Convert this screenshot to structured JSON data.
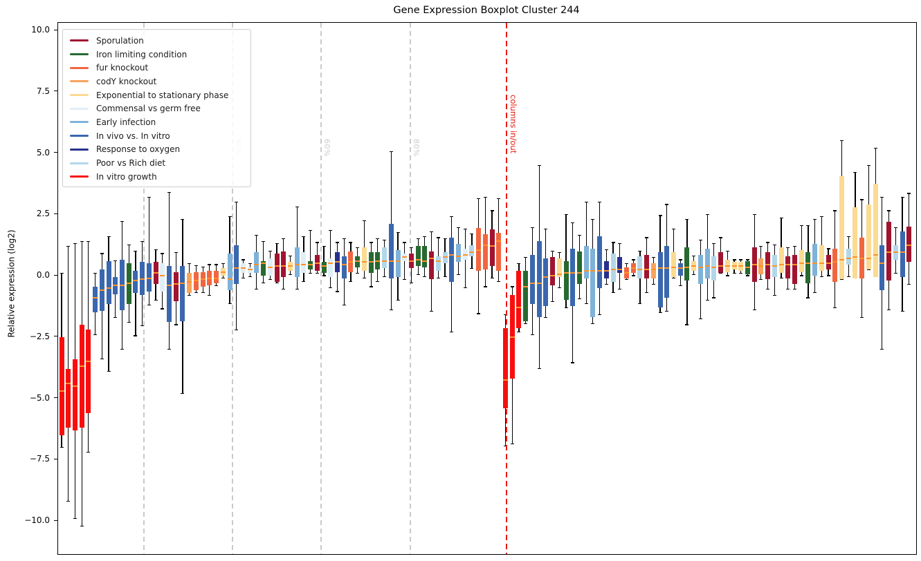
{
  "title": "Gene Expression Boxplot Cluster 244",
  "y_axis": {
    "label": "Relative expression (log2)",
    "ticks": [
      {
        "value": 10.0,
        "label": "10.0"
      },
      {
        "value": 7.5,
        "label": "7.5"
      },
      {
        "value": 5.0,
        "label": "5.0"
      },
      {
        "value": 2.5,
        "label": "2.5"
      },
      {
        "value": 0.0,
        "label": "0.0"
      },
      {
        "value": -2.5,
        "label": "−2.5"
      },
      {
        "value": -5.0,
        "label": "−5.0"
      },
      {
        "value": -7.5,
        "label": "−7.5"
      },
      {
        "value": -10.0,
        "label": "−10.0"
      }
    ],
    "range": [
      -11.4,
      10.3
    ]
  },
  "legend": {
    "entries": [
      {
        "label": "Sporulation",
        "color": "#a0142f"
      },
      {
        "label": "Iron limiting condition",
        "color": "#27692f"
      },
      {
        "label": "fur knockout",
        "color": "#f1663f"
      },
      {
        "label": "codY knockout",
        "color": "#f8a35b"
      },
      {
        "label": "Exponential to stationary phase",
        "color": "#fbda92"
      },
      {
        "label": "Commensal vs germ free",
        "color": "#e0eef7"
      },
      {
        "label": "Early infection",
        "color": "#7fb2d8"
      },
      {
        "label": "In vivo vs. In vitro",
        "color": "#3a67ae"
      },
      {
        "label": "Response to oxygen",
        "color": "#28308c"
      },
      {
        "label": "Poor vs Rich diet",
        "color": "#b3d7ea"
      },
      {
        "label": "In vitro growth",
        "color": "#fb0d0d"
      }
    ]
  },
  "annotations": {
    "percent_lines": [
      {
        "label": "20%",
        "x": 123
      },
      {
        "label": "40%",
        "x": 251
      },
      {
        "label": "60%",
        "x": 379
      },
      {
        "label": "80%",
        "x": 508
      }
    ],
    "red_line": {
      "label": "columns in/out",
      "x": 647
    },
    "grid_color": "#c9c9c9",
    "red_color": "#e8190f"
  },
  "chart_data": {
    "type": "boxplot",
    "title": "Gene Expression Boxplot Cluster 244",
    "ylabel": "Relative expression (log2)",
    "ylim": [
      -11.4,
      10.3
    ],
    "median_color": "#ff9028",
    "whisker_color": "#000000",
    "box_value_format": [
      "condition_index",
      "whisker_low",
      "q1",
      "median",
      "q3",
      "whisker_high"
    ],
    "conditions": [
      "Sporulation",
      "Iron limiting condition",
      "fur knockout",
      "codY knockout",
      "Exponential to stationary phase",
      "Commensal vs germ free",
      "Early infection",
      "In vivo vs. In vitro",
      "Response to oxygen",
      "Poor vs Rich diet",
      "In vitro growth"
    ],
    "boxes": [
      [
        10,
        -7.0,
        -6.5,
        -4.7,
        -2.5,
        0.1
      ],
      [
        10,
        -9.2,
        -6.2,
        -4.4,
        -3.8,
        1.2
      ],
      [
        10,
        -9.9,
        -6.3,
        -4.5,
        -3.4,
        1.3
      ],
      [
        10,
        -10.2,
        -6.2,
        -3.7,
        -2.0,
        1.4
      ],
      [
        10,
        -7.2,
        -5.6,
        -3.5,
        -2.2,
        1.4
      ],
      [
        7,
        -2.4,
        -1.5,
        -0.9,
        -0.45,
        0.1
      ],
      [
        7,
        -3.4,
        -1.45,
        -0.6,
        0.25,
        0.9
      ],
      [
        7,
        -3.9,
        -1.15,
        -0.5,
        0.6,
        1.6
      ],
      [
        7,
        -1.7,
        -0.75,
        -0.4,
        -0.05,
        0.6
      ],
      [
        7,
        -3.0,
        -1.4,
        -0.4,
        0.65,
        2.2
      ],
      [
        1,
        -1.9,
        -1.15,
        -0.3,
        0.5,
        1.25
      ],
      [
        7,
        -2.45,
        -0.7,
        -0.2,
        0.2,
        1.0
      ],
      [
        7,
        -2.05,
        -0.8,
        -0.15,
        0.55,
        1.4
      ],
      [
        7,
        -1.2,
        -0.65,
        -0.1,
        0.5,
        3.2
      ],
      [
        0,
        -1.0,
        -0.35,
        0.1,
        0.55,
        1.05
      ],
      [
        5,
        -1.35,
        -0.65,
        0.0,
        0.5,
        0.9
      ],
      [
        7,
        -3.0,
        -1.9,
        -0.4,
        0.4,
        3.4
      ],
      [
        0,
        -2.0,
        -1.05,
        -0.35,
        0.15,
        0.95
      ],
      [
        7,
        -4.8,
        -1.85,
        -0.3,
        0.4,
        2.3
      ],
      [
        3,
        -0.8,
        -0.7,
        -0.25,
        0.1,
        0.5
      ],
      [
        2,
        -0.7,
        -0.6,
        -0.2,
        0.15,
        0.4
      ],
      [
        2,
        -0.7,
        -0.45,
        -0.15,
        0.15,
        0.35
      ],
      [
        2,
        -0.8,
        -0.4,
        -0.1,
        0.2,
        0.45
      ],
      [
        2,
        -0.4,
        -0.3,
        -0.1,
        0.2,
        0.45
      ],
      [
        4,
        -0.1,
        0.0,
        0.15,
        0.3,
        0.5
      ],
      [
        6,
        -1.15,
        -0.6,
        -0.15,
        0.9,
        2.4
      ],
      [
        7,
        -2.2,
        -0.35,
        0.3,
        1.25,
        3.0
      ],
      [
        5,
        -0.1,
        0.1,
        0.3,
        0.5,
        0.65
      ],
      [
        5,
        -0.05,
        0.1,
        0.25,
        0.35,
        0.5
      ],
      [
        6,
        -0.55,
        0.1,
        0.45,
        0.95,
        1.65
      ],
      [
        1,
        -0.3,
        0.0,
        0.5,
        0.6,
        1.4
      ],
      [
        5,
        -0.15,
        0.0,
        0.35,
        0.7,
        1.0
      ],
      [
        0,
        -0.3,
        -0.25,
        0.4,
        0.9,
        1.3
      ],
      [
        0,
        -0.55,
        -0.05,
        0.4,
        1.0,
        1.5
      ],
      [
        4,
        0.05,
        0.2,
        0.4,
        0.55,
        0.8
      ],
      [
        6,
        -0.55,
        -0.05,
        0.45,
        1.15,
        2.8
      ],
      [
        5,
        -0.25,
        0.1,
        0.45,
        0.95,
        1.6
      ],
      [
        1,
        0.1,
        0.25,
        0.45,
        0.6,
        1.85
      ],
      [
        0,
        0.1,
        0.2,
        0.5,
        0.85,
        1.35
      ],
      [
        1,
        0.0,
        0.1,
        0.4,
        0.55,
        1.2
      ],
      [
        5,
        -0.5,
        -0.05,
        0.5,
        0.7,
        1.85
      ],
      [
        8,
        -0.65,
        0.15,
        0.55,
        0.95,
        1.35
      ],
      [
        7,
        -1.2,
        -0.1,
        0.45,
        0.8,
        1.5
      ],
      [
        2,
        -0.25,
        0.15,
        0.55,
        1.0,
        1.35
      ],
      [
        1,
        0.1,
        0.35,
        0.6,
        0.8,
        1.15
      ],
      [
        4,
        -0.1,
        0.2,
        0.55,
        1.15,
        2.25
      ],
      [
        1,
        -0.45,
        0.1,
        0.55,
        0.95,
        1.35
      ],
      [
        1,
        -0.25,
        0.25,
        0.6,
        0.95,
        1.5
      ],
      [
        9,
        -0.05,
        0.3,
        0.6,
        1.15,
        1.45
      ],
      [
        7,
        -1.4,
        -0.1,
        0.6,
        2.1,
        5.05
      ],
      [
        6,
        -1.0,
        -0.05,
        0.6,
        1.05,
        1.75
      ],
      [
        5,
        -0.15,
        0.6,
        0.75,
        0.9,
        1.35
      ],
      [
        0,
        -0.3,
        0.3,
        0.6,
        0.9,
        1.15
      ],
      [
        1,
        0.05,
        0.4,
        0.65,
        1.2,
        1.5
      ],
      [
        1,
        -0.05,
        0.35,
        0.6,
        1.2,
        1.6
      ],
      [
        0,
        -1.45,
        -0.15,
        0.7,
        1.0,
        1.8
      ],
      [
        9,
        -0.1,
        0.2,
        0.6,
        0.8,
        1.55
      ],
      [
        9,
        -0.05,
        0.5,
        0.75,
        0.95,
        1.5
      ],
      [
        7,
        -2.3,
        -0.25,
        0.85,
        1.55,
        2.4
      ],
      [
        6,
        0.05,
        0.55,
        0.8,
        1.3,
        1.95
      ],
      [
        5,
        -0.5,
        0.65,
        0.85,
        1.1,
        1.9
      ],
      [
        9,
        0.3,
        0.8,
        0.95,
        1.25,
        1.7
      ],
      [
        2,
        -1.55,
        0.2,
        1.05,
        1.95,
        3.15
      ],
      [
        2,
        -0.45,
        0.25,
        1.25,
        1.7,
        3.2
      ],
      [
        0,
        -0.1,
        0.4,
        1.2,
        1.9,
        2.65
      ],
      [
        2,
        -0.25,
        0.2,
        1.4,
        1.75,
        3.15
      ],
      [
        10,
        -6.95,
        -5.4,
        -4.25,
        -2.15,
        -1.6
      ],
      [
        10,
        -6.85,
        -4.2,
        -2.5,
        -0.8,
        -0.45
      ],
      [
        10,
        -2.3,
        -2.15,
        -1.3,
        0.2,
        0.5
      ],
      [
        1,
        -1.95,
        -1.85,
        -0.45,
        0.2,
        0.75
      ],
      [
        7,
        -2.4,
        -1.15,
        -0.3,
        0.85,
        1.95
      ],
      [
        7,
        -3.8,
        -1.7,
        -0.3,
        1.4,
        4.5
      ],
      [
        7,
        -1.7,
        -1.25,
        -0.05,
        0.7,
        1.9
      ],
      [
        0,
        -1.05,
        -0.4,
        0.0,
        0.75,
        1.0
      ],
      [
        4,
        -0.5,
        -0.05,
        0.05,
        0.7,
        0.95
      ],
      [
        1,
        -1.3,
        -1.0,
        0.1,
        0.6,
        2.5
      ],
      [
        7,
        -3.55,
        -1.25,
        0.1,
        1.1,
        2.15
      ],
      [
        1,
        -0.95,
        -0.35,
        0.1,
        1.0,
        1.65
      ],
      [
        6,
        -1.15,
        -0.1,
        0.2,
        1.2,
        3.0
      ],
      [
        6,
        -1.95,
        -1.7,
        0.2,
        1.1,
        2.3
      ],
      [
        7,
        -1.6,
        -0.5,
        0.2,
        1.6,
        3.0
      ],
      [
        8,
        -0.35,
        -0.1,
        0.2,
        0.6,
        1.05
      ],
      [
        9,
        -0.7,
        -0.25,
        0.25,
        0.9,
        1.35
      ],
      [
        8,
        -0.55,
        0.1,
        0.25,
        0.75,
        1.3
      ],
      [
        2,
        -0.15,
        -0.1,
        0.1,
        0.35,
        0.5
      ],
      [
        2,
        0.0,
        0.1,
        0.3,
        0.5,
        0.65
      ],
      [
        9,
        -1.15,
        -0.1,
        0.25,
        0.8,
        1.0
      ],
      [
        0,
        -0.7,
        -0.1,
        0.25,
        0.85,
        1.55
      ],
      [
        3,
        -0.35,
        -0.1,
        0.25,
        0.5,
        0.75
      ],
      [
        7,
        -1.5,
        -1.3,
        0.3,
        0.95,
        2.45
      ],
      [
        7,
        -1.45,
        -0.9,
        0.3,
        1.2,
        2.9
      ],
      [
        4,
        -0.1,
        -0.05,
        0.35,
        0.95,
        1.9
      ],
      [
        7,
        -0.4,
        0.0,
        0.3,
        0.5,
        0.65
      ],
      [
        1,
        -2.0,
        -0.2,
        0.35,
        1.15,
        2.3
      ],
      [
        4,
        0.05,
        0.2,
        0.4,
        0.6,
        0.8
      ],
      [
        6,
        -1.75,
        -0.35,
        0.35,
        0.85,
        1.45
      ],
      [
        6,
        -1.0,
        -0.1,
        0.4,
        1.1,
        2.5
      ],
      [
        9,
        -0.9,
        -0.2,
        0.35,
        0.8,
        1.3
      ],
      [
        0,
        0.1,
        0.1,
        0.4,
        0.95,
        1.55
      ],
      [
        4,
        0.0,
        0.15,
        0.4,
        0.65,
        1.0
      ],
      [
        4,
        0.1,
        0.25,
        0.4,
        0.55,
        0.65
      ],
      [
        4,
        0.1,
        0.2,
        0.4,
        0.55,
        0.65
      ],
      [
        1,
        0.0,
        0.05,
        0.35,
        0.6,
        0.65
      ],
      [
        0,
        -1.4,
        -0.25,
        0.45,
        1.15,
        2.5
      ],
      [
        3,
        -0.15,
        0.05,
        0.4,
        0.7,
        1.2
      ],
      [
        0,
        -0.55,
        -0.15,
        0.45,
        0.95,
        1.35
      ],
      [
        9,
        -0.8,
        -0.05,
        0.4,
        0.85,
        1.25
      ],
      [
        4,
        -0.1,
        0.1,
        0.45,
        1.15,
        2.35
      ],
      [
        0,
        -0.55,
        -0.1,
        0.45,
        0.8,
        1.15
      ],
      [
        0,
        -0.55,
        -0.35,
        0.45,
        0.85,
        1.2
      ],
      [
        4,
        0.0,
        0.15,
        0.5,
        1.05,
        2.05
      ],
      [
        1,
        -0.9,
        -0.3,
        0.5,
        0.95,
        2.05
      ],
      [
        6,
        -0.7,
        0.0,
        0.5,
        1.3,
        2.3
      ],
      [
        4,
        -0.05,
        0.2,
        0.5,
        1.25,
        2.4
      ],
      [
        0,
        0.0,
        0.25,
        0.5,
        0.85,
        1.1
      ],
      [
        2,
        -1.3,
        -0.25,
        0.55,
        1.1,
        2.65
      ],
      [
        4,
        -0.15,
        -0.15,
        0.65,
        4.05,
        5.5
      ],
      [
        9,
        -0.05,
        0.45,
        0.7,
        1.1,
        1.6
      ],
      [
        4,
        -0.1,
        -0.1,
        0.75,
        2.8,
        4.2
      ],
      [
        2,
        -1.7,
        -0.1,
        0.7,
        1.55,
        3.1
      ],
      [
        4,
        0.25,
        0.25,
        0.7,
        2.9,
        4.5
      ],
      [
        4,
        -0.05,
        -0.05,
        0.85,
        3.75,
        5.2
      ],
      [
        7,
        -3.0,
        -0.6,
        0.5,
        1.25,
        3.2
      ],
      [
        0,
        -1.4,
        -0.2,
        0.95,
        2.2,
        2.65
      ],
      [
        9,
        0.1,
        0.65,
        0.95,
        1.25,
        1.95
      ],
      [
        7,
        -1.45,
        -0.05,
        0.95,
        1.8,
        3.2
      ],
      [
        0,
        -0.35,
        0.55,
        1.25,
        2.0,
        3.35
      ]
    ]
  }
}
